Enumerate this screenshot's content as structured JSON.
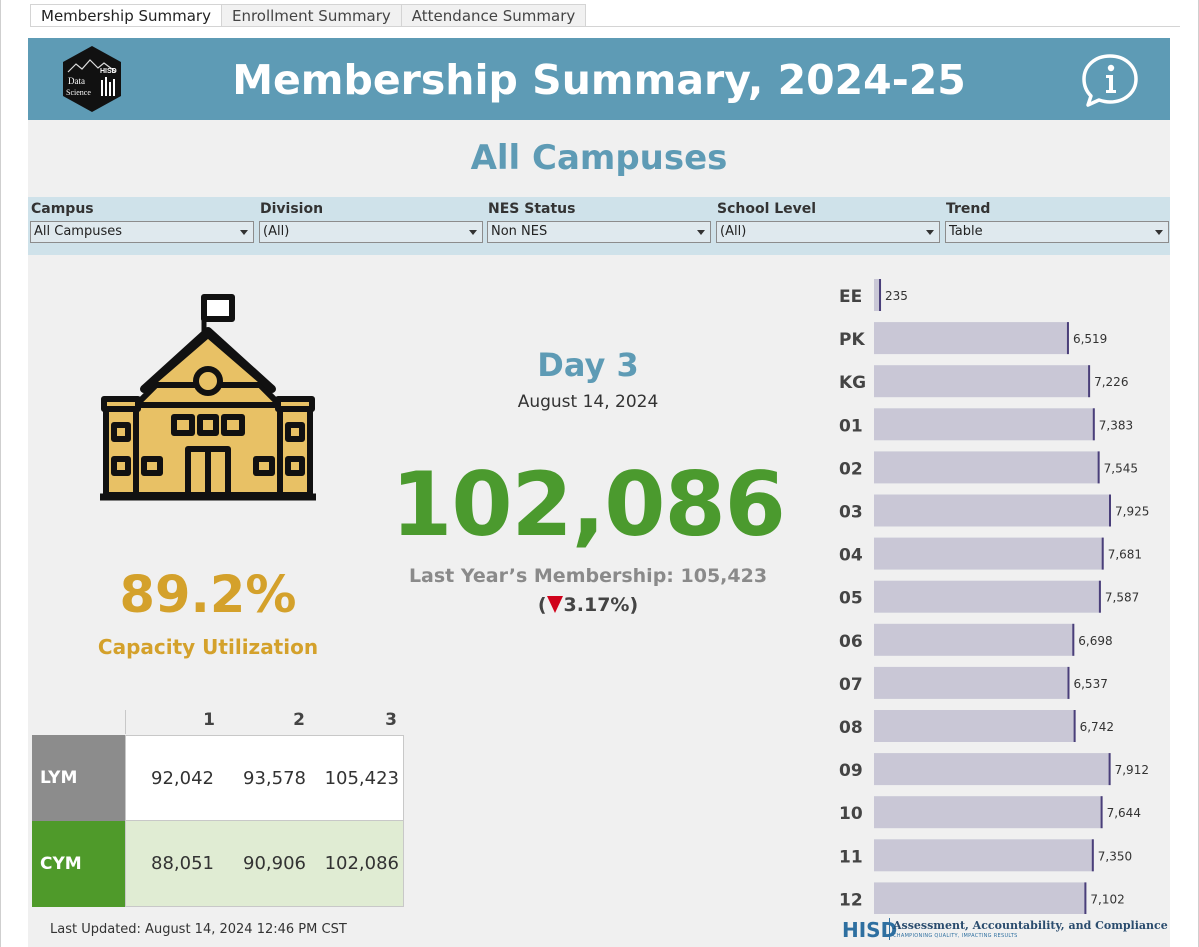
{
  "tabs": [
    {
      "label": "Membership Summary",
      "active": true
    },
    {
      "label": "Enrollment Summary",
      "active": false
    },
    {
      "label": "Attendance Summary",
      "active": false
    }
  ],
  "header": {
    "title": "Membership Summary, 2024-25",
    "logo_text_1": "HISD",
    "logo_text_2": "Data",
    "logo_text_3": "Science"
  },
  "subtitle": "All Campuses",
  "filters": [
    {
      "label": "Campus",
      "value": "All Campuses"
    },
    {
      "label": "Division",
      "value": "(All)"
    },
    {
      "label": "NES Status",
      "value": "Non NES"
    },
    {
      "label": "School Level",
      "value": "(All)"
    },
    {
      "label": "Trend",
      "value": "Table"
    }
  ],
  "capacity": {
    "value": "89.2%",
    "label": "Capacity Utilization"
  },
  "day": {
    "label": "Day 3",
    "date": "August 14, 2024"
  },
  "membership": {
    "current": "102,086",
    "last_year_label": "Last Year’s Membership: 105,423",
    "change_open": "(",
    "change_value": "3.17%)"
  },
  "table": {
    "columns": [
      "1",
      "2",
      "3"
    ],
    "rows": [
      {
        "label": "LYM",
        "values": [
          "92,042",
          "93,578",
          "105,423"
        ]
      },
      {
        "label": "CYM",
        "values": [
          "88,051",
          "90,906",
          "102,086"
        ]
      }
    ]
  },
  "updated": "Last Updated: August 14, 2024 12:46 PM CST",
  "footer": {
    "org": "HISD",
    "dept": "Assessment, Accountability, and Compliance",
    "tagline": "CHAMPIONING QUALITY, IMPACTING RESULTS"
  },
  "colors": {
    "header": "#5e9bb5",
    "lym": "#8c8c8c",
    "cym": "#4f9a2a",
    "cym_cells": "#e0ecd3",
    "bar": "#c9c7d6",
    "bar_end": "#4a3f7a",
    "capacity": "#d4a12b",
    "current": "#4b9a2e",
    "decrease": "#d0021b"
  },
  "chart_data": {
    "type": "bar",
    "orientation": "horizontal",
    "categories": [
      "EE",
      "PK",
      "KG",
      "01",
      "02",
      "03",
      "04",
      "05",
      "06",
      "07",
      "08",
      "09",
      "10",
      "11",
      "12"
    ],
    "values": [
      235,
      6519,
      7226,
      7383,
      7545,
      7925,
      7681,
      7587,
      6698,
      6537,
      6742,
      7912,
      7644,
      7350,
      7102
    ],
    "labels": [
      "235",
      "6,519",
      "7,226",
      "7,383",
      "7,545",
      "7,925",
      "7,681",
      "7,587",
      "6,698",
      "6,537",
      "6,742",
      "7,912",
      "7,644",
      "7,350",
      "7,102"
    ],
    "title": "",
    "xlabel": "",
    "ylabel": "",
    "xlim": [
      0,
      7925
    ],
    "grid": false
  }
}
